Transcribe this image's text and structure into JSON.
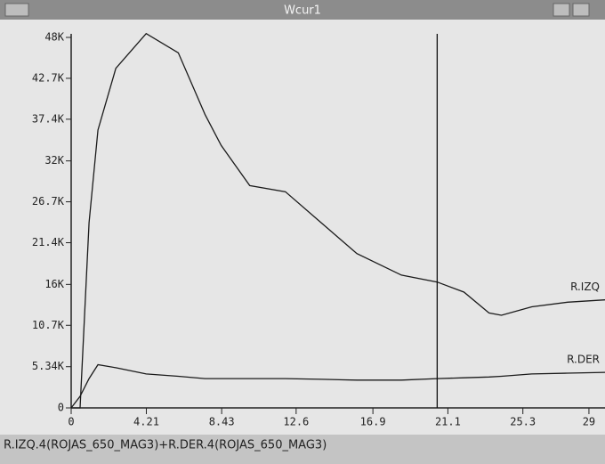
{
  "window_title": "Wcur1",
  "footer": "R.IZQ.4(ROJAS_650_MAG3)+R.DER.4(ROJAS_650_MAG3)",
  "chart_data": {
    "type": "line",
    "x": [
      0,
      0.5,
      1,
      1.5,
      2.5,
      4.2,
      6,
      7.5,
      8.4,
      10,
      12,
      14,
      16,
      18.5,
      20.5,
      22,
      23.4,
      24.1,
      25.8,
      27.8,
      29.9
    ],
    "series": [
      {
        "name": "R.IZQ",
        "color": "#1a1a1a",
        "values": [
          0,
          0,
          24000,
          36000,
          44000,
          48500,
          46000,
          38000,
          34000,
          28800,
          28000,
          24000,
          20000,
          17200,
          16300,
          15000,
          12300,
          12000,
          13100,
          13700,
          14000
        ]
      },
      {
        "name": "R.DER",
        "color": "#1a1a1a",
        "values": [
          0,
          1500,
          3800,
          5600,
          5200,
          4400,
          4100,
          3800,
          3800,
          3800,
          3800,
          3700,
          3600,
          3600,
          3800,
          3900,
          4000,
          4100,
          4400,
          4500,
          4600
        ]
      }
    ],
    "cursor_x": 20.5,
    "xlim": [
      0,
      29.9
    ],
    "xticks": [
      0,
      4.21,
      8.43,
      12.6,
      16.9,
      21.1,
      25.3,
      29
    ],
    "ylim": [
      0,
      48000
    ],
    "yticks": [
      0,
      {
        "value": 5340,
        "label": "5.34K"
      },
      {
        "value": 10700,
        "label": "10.7K"
      },
      {
        "value": 16000,
        "label": "16K"
      },
      {
        "value": 21400,
        "label": "21.4K"
      },
      {
        "value": 26700,
        "label": "26.7K"
      },
      {
        "value": 32000,
        "label": "32K"
      },
      {
        "value": 37400,
        "label": "37.4K"
      },
      {
        "value": 42700,
        "label": "42.7K"
      },
      {
        "value": 48000,
        "label": "48K"
      }
    ]
  }
}
